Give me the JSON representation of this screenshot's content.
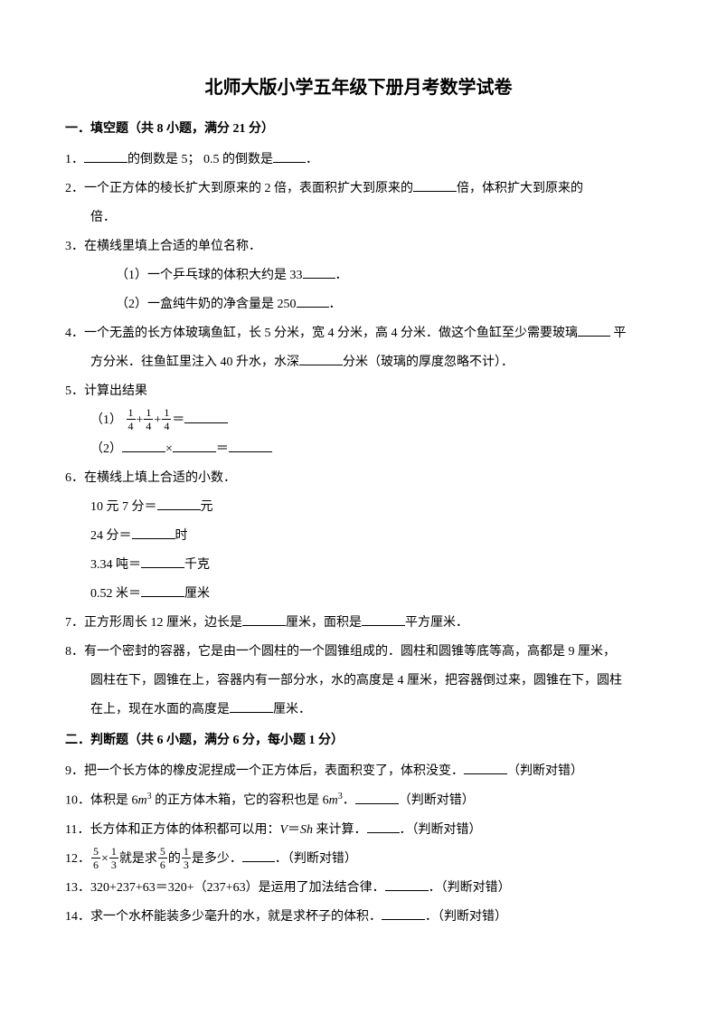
{
  "title": "北师大版小学五年级下册月考数学试卷",
  "section1": {
    "head": "一．填空题（共 8 小题，满分 21 分）",
    "q1a": "1．",
    "q1b": "的倒数是 5；   0.5 的倒数是",
    "q1c": "．",
    "q2a": "2．一个正方体的棱长扩大到原来的 2 倍，表面积扩大到原来的",
    "q2b": "倍，体积扩大到原来的",
    "q2c": "倍．",
    "q3a": "3．在横线里填上合适的单位名称．",
    "q3b": "（1）一个乒乓球的体积大约是 33",
    "q3c": "．",
    "q3d": "（2）一盒纯牛奶的净含量是 250",
    "q3e": "．",
    "q4a": "4．一个无盖的长方体玻璃鱼缸，长 5 分米，宽 4 分米，高 4 分米．做这个鱼缸至少需要玻璃",
    "q4b": " 平",
    "q4c": "方分米．往鱼缸里注入 40 升水，水深",
    "q4d": "分米（玻璃的厚度忽略不计）．",
    "q5a": "5．计算出结果",
    "q5b": "（1）",
    "q5frac_num": "1",
    "q5frac_den": "4",
    "q5plus": "+",
    "q5eq": "＝",
    "q5c": "（2）",
    "q5d": "×",
    "q5e": "＝",
    "q6a": "6．在横线上填上合适的小数．",
    "q6b": "10 元 7 分＝",
    "q6b2": "元",
    "q6c": "24 分＝",
    "q6c2": "时",
    "q6d": "3.34 吨＝",
    "q6d2": "千克",
    "q6e": "0.52 米＝",
    "q6e2": "厘米",
    "q7a": "7．正方形周长 12 厘米，边长是",
    "q7b": "厘米，面积是",
    "q7c": "平方厘米．",
    "q8a": "8．有一个密封的容器，它是由一个圆柱的一个圆锥组成的．圆柱和圆锥等底等高，高都是 9 厘米，",
    "q8b": "圆柱在下，圆锥在上，容器内有一部分水，水的高度是 4 厘米，把容器倒过来，圆锥在下，圆柱",
    "q8c": "在上，现在水面的高度是",
    "q8d": "厘米．"
  },
  "section2": {
    "head": "二．判断题（共 6 小题，满分 6 分，每小题 1 分）",
    "q9a": "9．把一个长方体的橡皮泥捏成一个正方体后，表面积变了，体积没变．",
    "q9b": "（判断对错）",
    "q10a": "10．体积是 6",
    "q10m": "m",
    "q10sup": "3",
    "q10b": " 的正方体木箱，它的容积也是 6",
    "q10c": "．",
    "q10d": "（判断对错）",
    "q11a": "11．长方体和正方体的体积都可以用：",
    "q11V": "V",
    "q11eq": "＝",
    "q11Sh": "Sh",
    "q11b": " 来计算．",
    "q11c": "．（判断对错）",
    "q12a": "12．",
    "q12n1": "5",
    "q12d1": "6",
    "q12x": "×",
    "q12n2": "1",
    "q12d2": "3",
    "q12b": "就是求",
    "q12c": "的",
    "q12d": "是多少．",
    "q12e": "．（判断对错）",
    "q13a": "13．320+237+63＝320+（237+63）是运用了加法结合律．",
    "q13b": "．（判断对错）",
    "q14a": "14．求一个水杯能装多少毫升的水，就是求杯子的体积．",
    "q14b": "．（判断对错）"
  }
}
